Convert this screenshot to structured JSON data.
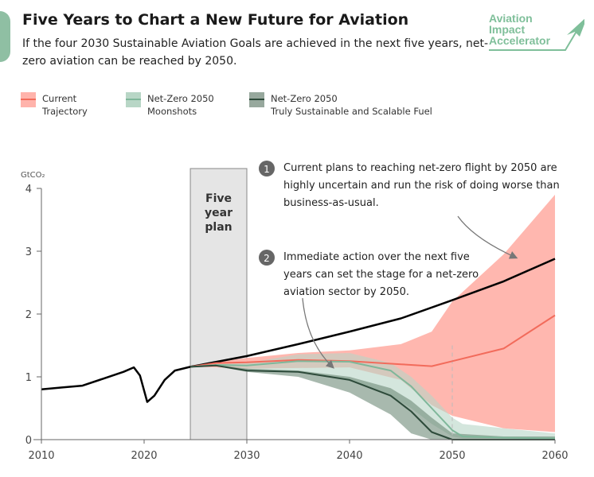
{
  "header": {
    "title": "Five Years to Chart a New Future for Aviation",
    "subtitle": "If the four 2030 Sustainable Aviation Goals are achieved in the next five years, net-zero aviation can be reached by 2050."
  },
  "logo": {
    "text": "Aviation Impact Accelerator",
    "icon": "paper-plane-arrow-icon",
    "color": "#7fbf9a"
  },
  "legend": [
    {
      "line1": "Current",
      "line2": "Trajectory",
      "band_color": "#ffb3ab",
      "line_color": "#f26b5b"
    },
    {
      "line1": "Net-Zero 2050",
      "line2": "Moonshots",
      "band_color": "#b8d6c6",
      "line_color": "#7fb79a"
    },
    {
      "line1": "Net-Zero 2050",
      "line2": "Truly Sustainable and Scalable Fuel",
      "band_color": "#97a89d",
      "line_color": "#2d4a3a"
    }
  ],
  "annotations": [
    {
      "number": "1",
      "text": "Current plans to reaching net-zero flight by 2050 are highly uncertain and run the risk of doing worse than business-as-usual."
    },
    {
      "number": "2",
      "text": "Immediate action over the next five years can set the stage for a net-zero aviation sector by 2050."
    }
  ],
  "chart_data": {
    "type": "area",
    "ylabel": "GtCO₂",
    "xlim": [
      2010,
      2060
    ],
    "ylim": [
      0,
      4
    ],
    "xticks": [
      "2010",
      "2020",
      "2030",
      "2040",
      "2050",
      "2060"
    ],
    "yticks": [
      "0",
      "1",
      "2",
      "3",
      "4"
    ],
    "highlight": {
      "label": "Five year plan",
      "from": 2024.5,
      "to": 2030
    },
    "reference_line_x": 2050,
    "series": [
      {
        "key": "history_bau",
        "color": "#000000",
        "x": [
          2010,
          2012,
          2014,
          2016,
          2018,
          2019,
          2019.6,
          2020.3,
          2021,
          2022,
          2023,
          2024.5,
          2030,
          2035,
          2040,
          2045,
          2050,
          2055,
          2060
        ],
        "y": [
          0.8,
          0.83,
          0.86,
          0.97,
          1.08,
          1.15,
          1.02,
          0.6,
          0.7,
          0.95,
          1.1,
          1.16,
          1.33,
          1.52,
          1.72,
          1.93,
          2.22,
          2.52,
          2.88
        ]
      },
      {
        "key": "current",
        "color": "#f26b5b",
        "band_color": "#ffb3ab",
        "x": [
          2024.5,
          2027,
          2030,
          2035,
          2040,
          2045,
          2048,
          2050,
          2055,
          2060
        ],
        "y": [
          1.16,
          1.22,
          1.23,
          1.27,
          1.25,
          1.2,
          1.17,
          1.25,
          1.45,
          1.98
        ],
        "upper": [
          1.16,
          1.24,
          1.3,
          1.38,
          1.42,
          1.52,
          1.72,
          2.2,
          2.95,
          3.9
        ],
        "lower": [
          1.16,
          1.15,
          1.13,
          1.14,
          1.15,
          0.95,
          0.55,
          0.38,
          0.18,
          0.12
        ]
      },
      {
        "key": "moonshots",
        "color": "#7fb79a",
        "band_color": "#b8d6c6",
        "x": [
          2024.5,
          2027,
          2030,
          2035,
          2040,
          2044,
          2046,
          2048,
          2050,
          2051,
          2055,
          2060
        ],
        "y": [
          1.16,
          1.19,
          1.18,
          1.25,
          1.24,
          1.1,
          0.85,
          0.5,
          0.15,
          0.05,
          0.03,
          0.02
        ],
        "upper": [
          1.16,
          1.2,
          1.22,
          1.36,
          1.38,
          1.22,
          1.0,
          0.7,
          0.35,
          0.25,
          0.18,
          0.1
        ],
        "lower": [
          1.16,
          1.17,
          1.1,
          1.08,
          0.95,
          0.7,
          0.5,
          0.25,
          0.05,
          0.02,
          0.02,
          0.02
        ]
      },
      {
        "key": "sustainable",
        "color": "#2d4a3a",
        "band_color": "#6e8a78",
        "x": [
          2024.5,
          2027,
          2030,
          2035,
          2040,
          2044,
          2046,
          2048,
          2050,
          2055,
          2060
        ],
        "y": [
          1.16,
          1.18,
          1.1,
          1.08,
          0.95,
          0.7,
          0.45,
          0.12,
          0.0,
          0.0,
          0.0
        ],
        "upper": [
          1.16,
          1.19,
          1.13,
          1.1,
          1.0,
          0.82,
          0.62,
          0.35,
          0.1,
          0.05,
          0.05
        ],
        "lower": [
          1.16,
          1.17,
          1.08,
          1.0,
          0.75,
          0.4,
          0.1,
          0.0,
          0.0,
          0.0,
          0.0
        ]
      }
    ]
  }
}
